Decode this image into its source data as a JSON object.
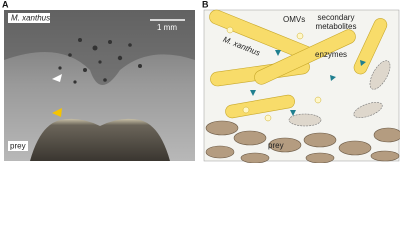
{
  "panel_a": {
    "label": "A",
    "organism": "M. xanthus",
    "scale_bar": "1 mm",
    "prey": "prey"
  },
  "panel_b": {
    "label": "B",
    "omvs": "OMVs",
    "metabolites": [
      "secondary",
      "metabolites"
    ],
    "enzymes": "enzymes",
    "organism": "M. xanthus",
    "prey": "prey"
  }
}
